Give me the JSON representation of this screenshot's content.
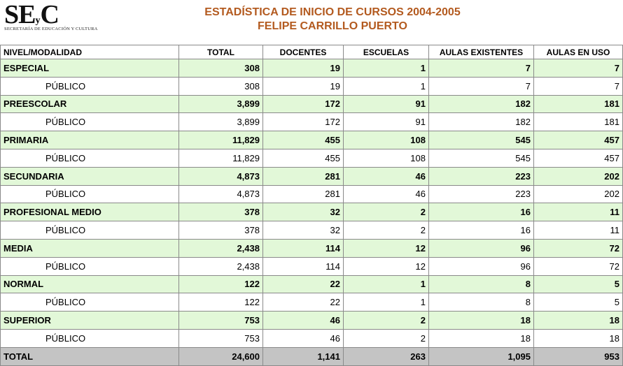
{
  "header": {
    "logo": {
      "mark": "SE",
      "mark_small": "y",
      "mark_end": "C",
      "subtitle": "Secretaría de Educación y Cultura"
    },
    "title": "ESTADÍSTICA DE INICIO DE CURSOS 2004-2005",
    "subtitle": "FELIPE CARRILLO PUERTO"
  },
  "table": {
    "columns": [
      "NIVEL/MODALIDAD",
      "TOTAL",
      "DOCENTES",
      "ESCUELAS",
      "AULAS EXISTENTES",
      "AULAS EN USO"
    ],
    "rows": [
      [
        "ESPECIAL",
        "308",
        "19",
        "1",
        "7",
        "7"
      ],
      [
        "PÚBLICO",
        "308",
        "19",
        "1",
        "7",
        "7"
      ],
      [
        "PREESCOLAR",
        "3,899",
        "172",
        "91",
        "182",
        "181"
      ],
      [
        "PÚBLICO",
        "3,899",
        "172",
        "91",
        "182",
        "181"
      ],
      [
        "PRIMARIA",
        "11,829",
        "455",
        "108",
        "545",
        "457"
      ],
      [
        "PÚBLICO",
        "11,829",
        "455",
        "108",
        "545",
        "457"
      ],
      [
        "SECUNDARIA",
        "4,873",
        "281",
        "46",
        "223",
        "202"
      ],
      [
        "PÚBLICO",
        "4,873",
        "281",
        "46",
        "223",
        "202"
      ],
      [
        "PROFESIONAL MEDIO",
        "378",
        "32",
        "2",
        "16",
        "11"
      ],
      [
        "PÚBLICO",
        "378",
        "32",
        "2",
        "16",
        "11"
      ],
      [
        "MEDIA",
        "2,438",
        "114",
        "12",
        "96",
        "72"
      ],
      [
        "PÚBLICO",
        "2,438",
        "114",
        "12",
        "96",
        "72"
      ],
      [
        "NORMAL",
        "122",
        "22",
        "1",
        "8",
        "5"
      ],
      [
        "PÚBLICO",
        "122",
        "22",
        "1",
        "8",
        "5"
      ],
      [
        "SUPERIOR",
        "753",
        "46",
        "2",
        "18",
        "18"
      ],
      [
        "PÚBLICO",
        "753",
        "46",
        "2",
        "18",
        "18"
      ]
    ],
    "total": [
      "TOTAL",
      "24,600",
      "1,141",
      "263",
      "1,095",
      "953"
    ]
  }
}
